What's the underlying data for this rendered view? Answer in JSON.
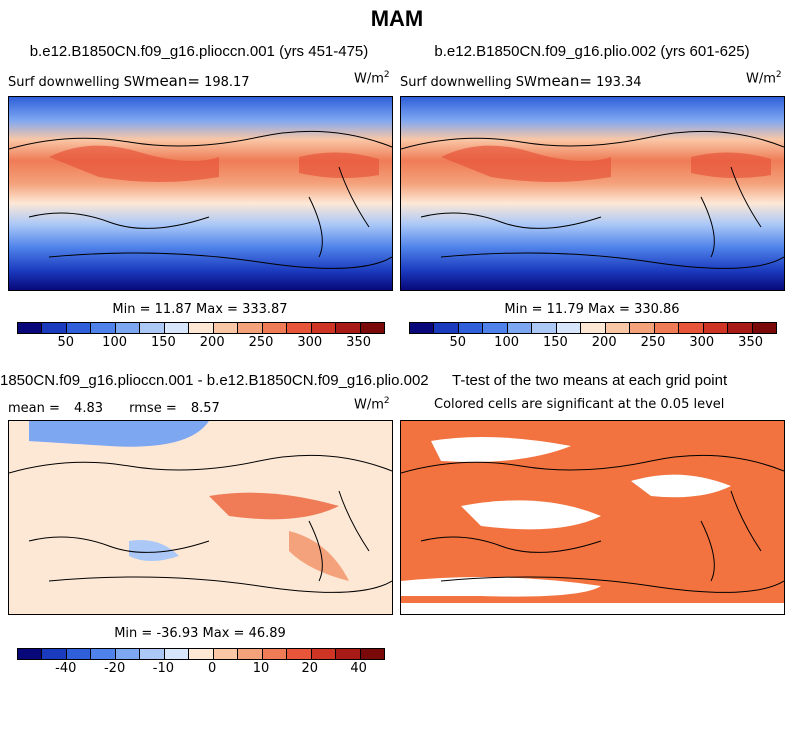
{
  "figure": {
    "season": "MAM"
  },
  "panels": {
    "p1": {
      "title": "b.e12.B1850CN.f09_g16.plioccn.001 (yrs 451-475)",
      "var_label": "Surf downwelling SW",
      "mean_label": "mean=",
      "mean_value": "198.17",
      "units": "W/m",
      "units_exp": "2",
      "min_label": "Min =",
      "min_value": "11.87",
      "max_label": "Max =",
      "max_value": "333.87"
    },
    "p2": {
      "title": "b.e12.B1850CN.f09_g16.plio.002 (yrs 601-625)",
      "var_label": "Surf downwelling SW",
      "mean_label": "mean=",
      "mean_value": "193.34",
      "units": "W/m",
      "units_exp": "2",
      "min_label": "Min =",
      "min_value": "11.79",
      "max_label": "Max =",
      "max_value": "330.86"
    },
    "p3": {
      "title": "1850CN.f09_g16.plioccn.001 - b.e12.B1850CN.f09_g16.plio.002",
      "mean_label": "mean =",
      "mean_value": "4.83",
      "rmse_label": "rmse =",
      "rmse_value": "8.57",
      "units": "W/m",
      "units_exp": "2",
      "min_label": "Min =",
      "min_value": "-36.93",
      "max_label": "Max =",
      "max_value": "46.89"
    },
    "p4": {
      "title": "T-test of the two means at each grid point",
      "subtitle": "Colored cells are significant at the 0.05 level",
      "fill_color": "#f2733f"
    }
  },
  "colorbars": {
    "abs_colors": [
      "#08087a",
      "#1b3bbf",
      "#2f5fd9",
      "#4f82ea",
      "#7ea7f2",
      "#abc8f7",
      "#d7e6fb",
      "#fde8d6",
      "#f9c7a6",
      "#f4a27c",
      "#ef7c56",
      "#e7563a",
      "#cf3524",
      "#a81a16",
      "#7a0a0a"
    ],
    "abs_ticks": [
      "50",
      "100",
      "150",
      "200",
      "250",
      "300",
      "350"
    ],
    "diff_colors": [
      "#08087a",
      "#1b3bbf",
      "#2f5fd9",
      "#4f82ea",
      "#7ea7f2",
      "#abc8f7",
      "#d7e6fb",
      "#fde8d6",
      "#f9c7a6",
      "#f4a27c",
      "#ef7c56",
      "#e7563a",
      "#cf3524",
      "#a81a16",
      "#7a0a0a"
    ],
    "diff_ticks": [
      "-40",
      "-20",
      "-10",
      "0",
      "10",
      "20",
      "40"
    ]
  }
}
